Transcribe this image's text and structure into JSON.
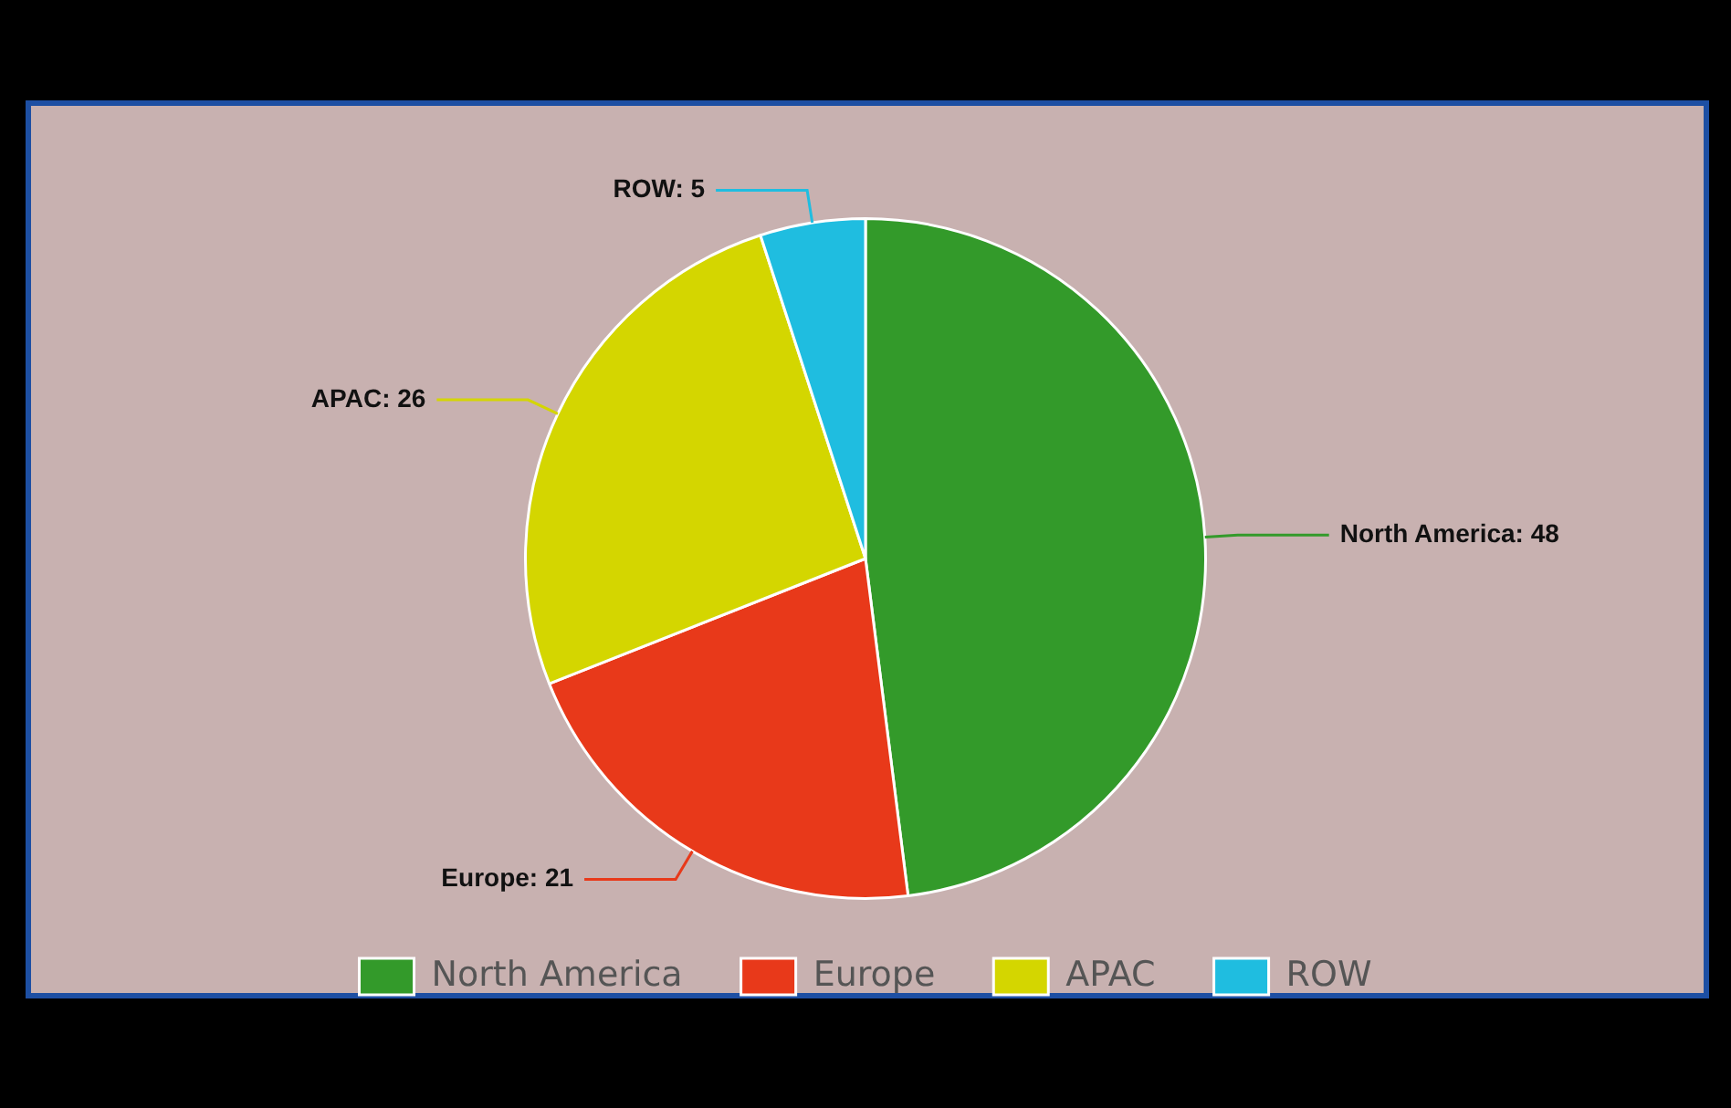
{
  "chart_data": {
    "type": "pie",
    "categories": [
      "North America",
      "Europe",
      "APAC",
      "ROW"
    ],
    "values": [
      48,
      21,
      26,
      5
    ],
    "colors": [
      "#339a2a",
      "#e8391a",
      "#d4d600",
      "#1fbde0"
    ],
    "value_labels": [
      "North America: 48",
      "Europe: 21",
      "APAC: 26",
      "ROW: 5"
    ],
    "legend": "bottom"
  }
}
